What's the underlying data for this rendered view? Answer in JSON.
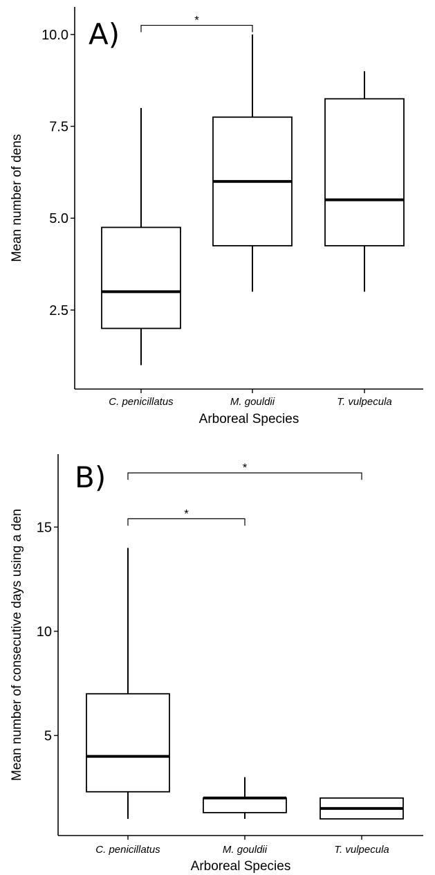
{
  "chart_data": [
    {
      "type": "box",
      "panel_label": "A)",
      "xlabel": "Arboreal Species",
      "ylabel": "Mean number of dens",
      "categories": [
        "C. penicillatus",
        "M. gouldii",
        "T. vulpecula"
      ],
      "ylim": [
        0.35,
        10.75
      ],
      "yticks": [
        2.5,
        5.0,
        7.5,
        10.0
      ],
      "ytick_labels": [
        "2.5",
        "5.0",
        "7.5",
        "10.0"
      ],
      "boxes": [
        {
          "min": 1.0,
          "q1": 2.0,
          "median": 3.0,
          "q3": 4.75,
          "max": 8.0
        },
        {
          "min": 3.0,
          "q1": 4.25,
          "median": 6.0,
          "q3": 7.75,
          "max": 10.0
        },
        {
          "min": 3.0,
          "q1": 4.25,
          "median": 5.5,
          "q3": 8.25,
          "max": 9.0
        }
      ],
      "significance": [
        {
          "from": 0,
          "to": 1,
          "label": "*",
          "y": 10.25
        }
      ],
      "grid": false,
      "legend": "none"
    },
    {
      "type": "box",
      "panel_label": "B)",
      "xlabel": "Arboreal Species",
      "ylabel": "Mean number of consecutive days using a den",
      "categories": [
        "C. penicillatus",
        "M. gouldii",
        "T. vulpecula"
      ],
      "ylim": [
        0.2,
        18.5
      ],
      "yticks": [
        5,
        10,
        15
      ],
      "ytick_labels": [
        "5",
        "10",
        "15"
      ],
      "boxes": [
        {
          "min": 1.0,
          "q1": 2.3,
          "median": 4.0,
          "q3": 7.0,
          "max": 14.0
        },
        {
          "min": 1.0,
          "q1": 1.3,
          "median": 2.0,
          "q3": 2.0,
          "max": 3.0
        },
        {
          "min": 1.0,
          "q1": 1.0,
          "median": 1.5,
          "q3": 2.0,
          "max": 2.0
        }
      ],
      "significance": [
        {
          "from": 0,
          "to": 1,
          "label": "*",
          "y": 15.4
        },
        {
          "from": 0,
          "to": 2,
          "label": "*",
          "y": 17.6
        }
      ],
      "grid": false,
      "legend": "none"
    }
  ]
}
